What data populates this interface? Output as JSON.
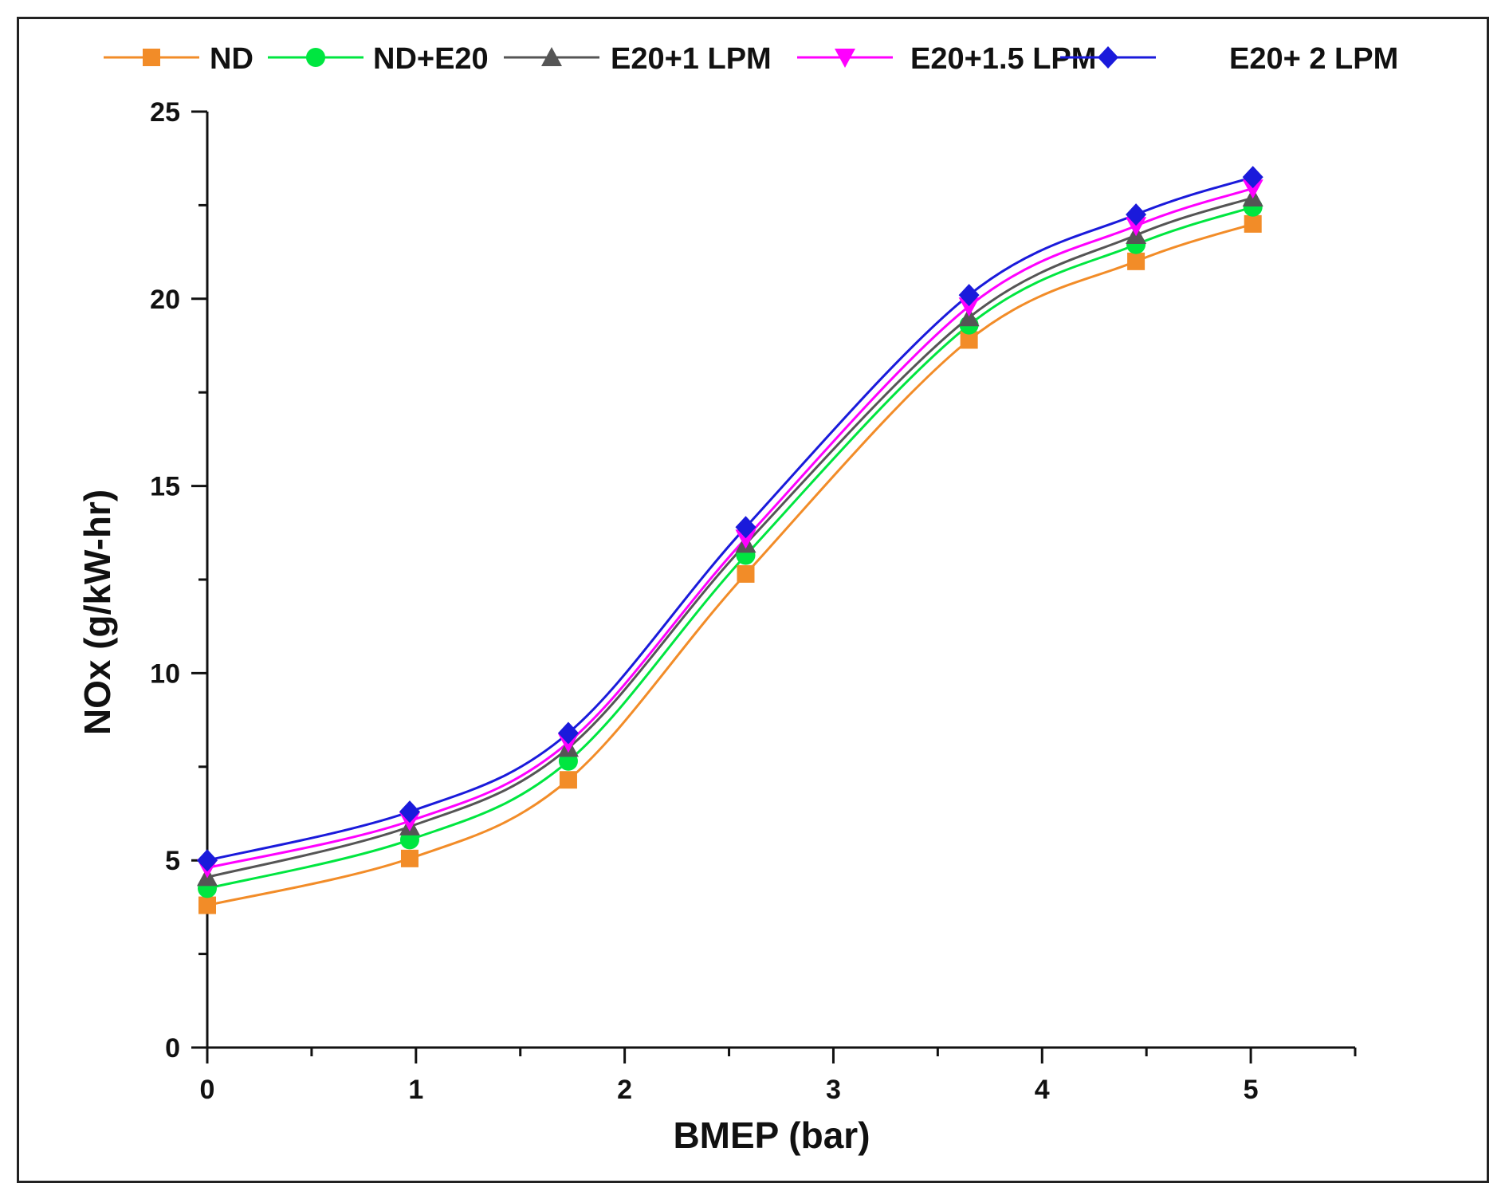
{
  "chart_data": {
    "type": "line",
    "title": "",
    "xlabel": "BMEP (bar)",
    "ylabel": "NOx (g/kW-hr)",
    "xlim": [
      0,
      5.5
    ],
    "ylim": [
      0,
      25
    ],
    "x_ticks": [
      "0",
      "1",
      "2",
      "3",
      "4",
      "5"
    ],
    "y_ticks": [
      "0",
      "5",
      "10",
      "15",
      "20",
      "25"
    ],
    "grid": false,
    "legend_position": "top",
    "x": [
      0,
      0.97,
      1.73,
      2.58,
      3.65,
      4.45,
      5.01
    ],
    "series": [
      {
        "name": "ND",
        "color": "#f28c28",
        "marker": "square",
        "values": [
          3.8,
          5.05,
          7.15,
          12.65,
          18.9,
          21.0,
          22.0
        ]
      },
      {
        "name": "ND+E20",
        "color": "#00e640",
        "marker": "circle",
        "values": [
          4.25,
          5.55,
          7.65,
          13.15,
          19.3,
          21.45,
          22.45
        ]
      },
      {
        "name": "E20+1 LPM",
        "color": "#555555",
        "marker": "triangle-up",
        "values": [
          4.55,
          5.9,
          8.0,
          13.45,
          19.5,
          21.7,
          22.7
        ]
      },
      {
        "name": "E20+1.5 LPM",
        "color": "#ff00ff",
        "marker": "triangle-down",
        "values": [
          4.8,
          6.05,
          8.15,
          13.6,
          19.8,
          21.95,
          22.95
        ]
      },
      {
        "name": "E20+ 2 LPM",
        "color": "#1a1adb",
        "marker": "diamond",
        "values": [
          5.0,
          6.3,
          8.4,
          13.9,
          20.1,
          22.25,
          23.25
        ]
      }
    ]
  }
}
